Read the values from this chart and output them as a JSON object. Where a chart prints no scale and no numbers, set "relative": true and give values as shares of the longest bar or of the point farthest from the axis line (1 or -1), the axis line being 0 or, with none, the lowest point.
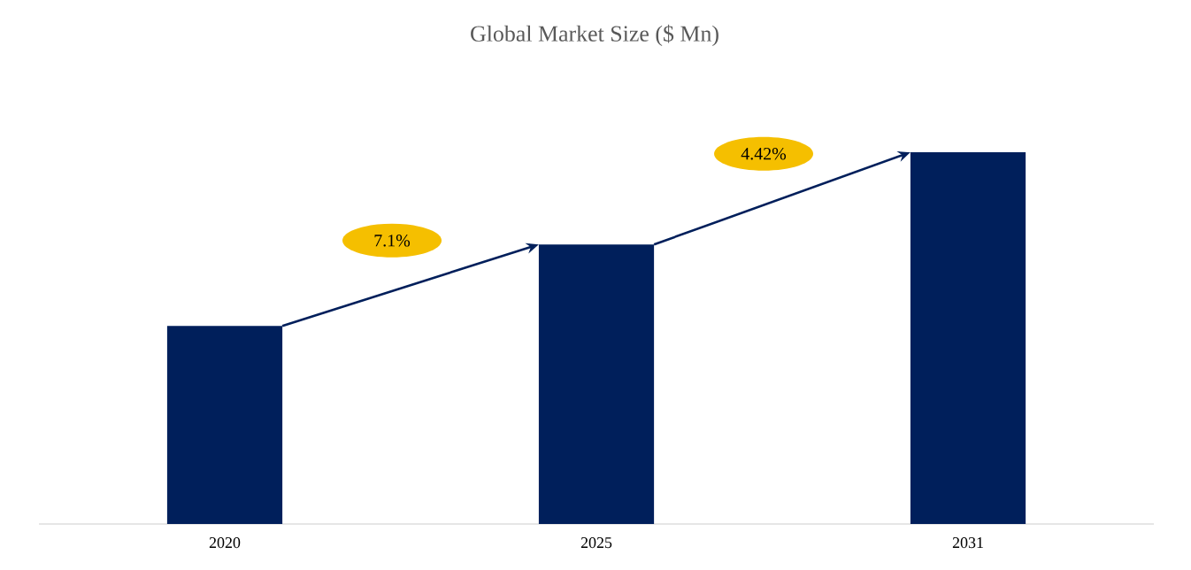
{
  "chart_data": {
    "type": "bar",
    "title": "Global Market Size ($ Mn)",
    "categories": [
      "2020",
      "2025",
      "2031"
    ],
    "values": [
      0.533,
      0.752,
      1
    ],
    "color": "#001f5b",
    "relative": true,
    "annotations": [
      "7.1%",
      "4.42%"
    ]
  }
}
